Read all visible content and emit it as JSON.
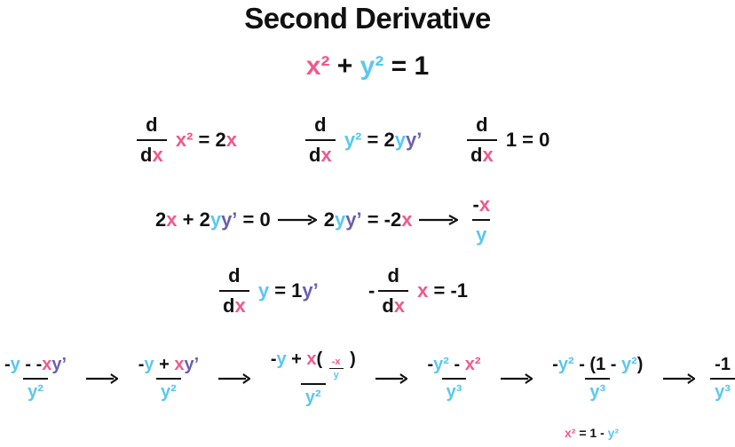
{
  "title": "Second Derivative",
  "colors": {
    "x": "#f0598a",
    "y": "#5bc8ec",
    "yp": "#6b5fad",
    "k": "#111111"
  },
  "expressions": {
    "main-eq": [
      [
        "x²",
        "x"
      ],
      [
        " + ",
        "k"
      ],
      [
        "y²",
        "y"
      ],
      [
        " = 1",
        "k"
      ]
    ],
    "r1a": [
      {
        "frac": {
          "num": [
            [
              "d",
              "k"
            ]
          ],
          "den": [
            [
              "d",
              "k"
            ],
            [
              "x",
              "x"
            ]
          ]
        }
      },
      [
        " ",
        "k"
      ],
      [
        "x²",
        "x"
      ],
      [
        " = 2",
        "k"
      ],
      [
        "x",
        "x"
      ]
    ],
    "r1b": [
      {
        "frac": {
          "num": [
            [
              "d",
              "k"
            ]
          ],
          "den": [
            [
              "d",
              "k"
            ],
            [
              "x",
              "x"
            ]
          ]
        }
      },
      [
        " ",
        "k"
      ],
      [
        "y²",
        "y"
      ],
      [
        " = 2",
        "k"
      ],
      [
        "y",
        "y"
      ],
      [
        "y’",
        "yp"
      ]
    ],
    "r1c": [
      {
        "frac": {
          "num": [
            [
              "d",
              "k"
            ]
          ],
          "den": [
            [
              "d",
              "k"
            ],
            [
              "x",
              "x"
            ]
          ]
        }
      },
      [
        " 1 = 0",
        "k"
      ]
    ],
    "r2": [
      [
        "2",
        "k"
      ],
      [
        "x",
        "x"
      ],
      [
        " + 2",
        "k"
      ],
      [
        "y",
        "y"
      ],
      [
        "y’",
        "yp"
      ],
      [
        " = 0",
        "k"
      ],
      {
        "arrow": true
      },
      [
        "2",
        "k"
      ],
      [
        "y",
        "y"
      ],
      [
        "y’",
        "yp"
      ],
      [
        " = -2",
        "k"
      ],
      [
        "x",
        "x"
      ],
      {
        "arrow": true
      },
      {
        "frac": {
          "num": [
            [
              "-",
              "k"
            ],
            [
              "x",
              "x"
            ]
          ],
          "den": [
            [
              "y",
              "y"
            ]
          ]
        }
      }
    ],
    "r3a": [
      {
        "frac": {
          "num": [
            [
              "d",
              "k"
            ]
          ],
          "den": [
            [
              "d",
              "k"
            ],
            [
              "x",
              "x"
            ]
          ]
        }
      },
      [
        " ",
        "k"
      ],
      [
        "y",
        "y"
      ],
      [
        " = 1",
        "k"
      ],
      [
        "y’",
        "yp"
      ]
    ],
    "r3b": [
      [
        "-",
        "k"
      ],
      {
        "frac": {
          "num": [
            [
              "d",
              "k"
            ]
          ],
          "den": [
            [
              "d",
              "k"
            ],
            [
              "x",
              "x"
            ]
          ]
        }
      },
      [
        " ",
        "k"
      ],
      [
        "x",
        "x"
      ],
      [
        " = -1",
        "k"
      ]
    ],
    "r4": [
      {
        "frac": {
          "num": [
            [
              "-",
              "k"
            ],
            [
              "y",
              "y"
            ],
            [
              " - -",
              "k"
            ],
            [
              "x",
              "x"
            ],
            [
              "y’",
              "yp"
            ]
          ],
          "den": [
            [
              "y²",
              "y"
            ]
          ]
        }
      },
      {
        "arrow": true
      },
      {
        "frac": {
          "num": [
            [
              "-",
              "k"
            ],
            [
              "y",
              "y"
            ],
            [
              " + ",
              "k"
            ],
            [
              "x",
              "x"
            ],
            [
              "y’",
              "yp"
            ]
          ],
          "den": [
            [
              "y²",
              "y"
            ]
          ]
        }
      },
      {
        "arrow": true
      },
      {
        "frac": {
          "num": [
            [
              "-",
              "k"
            ],
            [
              "y",
              "y"
            ],
            [
              " + ",
              "k"
            ],
            [
              "x",
              "x"
            ],
            [
              "( ",
              "k"
            ],
            {
              "small": [
                {
                  "frac": {
                    "num": [
                      [
                        "-x",
                        "x"
                      ]
                    ],
                    "den": [
                      [
                        "y",
                        "y"
                      ]
                    ]
                  }
                }
              ]
            },
            [
              " )",
              "k"
            ]
          ],
          "den": [
            [
              "y²",
              "y"
            ]
          ]
        }
      },
      {
        "arrow": true
      },
      {
        "frac": {
          "num": [
            [
              "-",
              "k"
            ],
            [
              "y²",
              "y"
            ],
            [
              " - ",
              "k"
            ],
            [
              "x²",
              "x"
            ]
          ],
          "den": [
            [
              "y³",
              "y"
            ]
          ]
        }
      },
      {
        "arrow": true
      },
      {
        "frac": {
          "num": [
            [
              "-",
              "k"
            ],
            [
              "y²",
              "y"
            ],
            [
              " - (1 - ",
              "k"
            ],
            [
              "y²",
              "y"
            ],
            [
              ")",
              "k"
            ]
          ],
          "den": [
            [
              "y³",
              "y"
            ]
          ]
        }
      },
      {
        "arrow": true
      },
      {
        "frac": {
          "num": [
            [
              "-1",
              "k"
            ]
          ],
          "den": [
            [
              "y³",
              "y"
            ]
          ]
        }
      }
    ],
    "note": [
      [
        "x²",
        "x"
      ],
      [
        " = 1 - ",
        "k"
      ],
      [
        "y²",
        "y"
      ]
    ]
  }
}
